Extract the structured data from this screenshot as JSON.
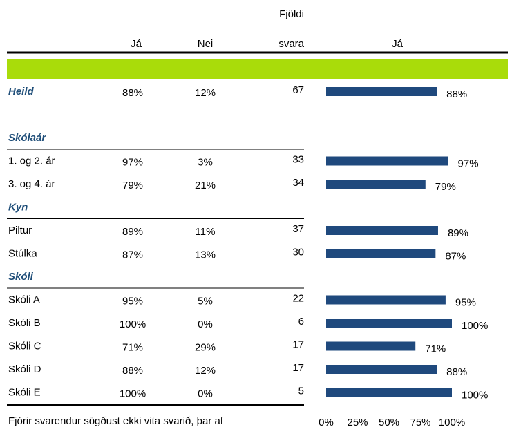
{
  "table": {
    "columns": [
      "Já",
      "Nei"
    ],
    "count_header": [
      "Fjöldi",
      "svara"
    ],
    "total": {
      "label": "Heild",
      "yes": "88%",
      "no": "12%",
      "n": 67
    },
    "groups": [
      {
        "title": "Skólaár",
        "rows": [
          {
            "label": "1. og 2. ár",
            "yes": "97%",
            "no": "3%",
            "n": 33
          },
          {
            "label": "3. og 4. ár",
            "yes": "79%",
            "no": "21%",
            "n": 34
          }
        ]
      },
      {
        "title": "Kyn",
        "rows": [
          {
            "label": "Piltur",
            "yes": "89%",
            "no": "11%",
            "n": 37
          },
          {
            "label": "Stúlka",
            "yes": "87%",
            "no": "13%",
            "n": 30
          }
        ]
      },
      {
        "title": "Skóli",
        "rows": [
          {
            "label": "Skóli A",
            "yes": "95%",
            "no": "5%",
            "n": 22
          },
          {
            "label": "Skóli B",
            "yes": "100%",
            "no": "0%",
            "n": 6
          },
          {
            "label": "Skóli C",
            "yes": "71%",
            "no": "29%",
            "n": 17
          },
          {
            "label": "Skóli D",
            "yes": "88%",
            "no": "12%",
            "n": 17
          },
          {
            "label": "Skóli E",
            "yes": "100%",
            "no": "0%",
            "n": 5
          }
        ]
      }
    ],
    "footnote": "Fjórir svarendur sögðust ekki vita svarið, þar af"
  },
  "chart_data": {
    "type": "bar",
    "orientation": "horizontal",
    "title": "Já",
    "values": [
      88,
      97,
      79,
      89,
      87,
      95,
      100,
      71,
      88,
      100
    ],
    "value_labels": [
      "88%",
      "97%",
      "79%",
      "89%",
      "87%",
      "95%",
      "100%",
      "71%",
      "88%",
      "100%"
    ],
    "color": "#1f497d",
    "xlim": [
      0,
      100
    ],
    "xticks": [
      {
        "value": 0,
        "label": "0%"
      },
      {
        "value": 25,
        "label": "25%"
      },
      {
        "value": 50,
        "label": "50%"
      },
      {
        "value": 75,
        "label": "75%"
      },
      {
        "value": 100,
        "label": "100%"
      }
    ]
  }
}
